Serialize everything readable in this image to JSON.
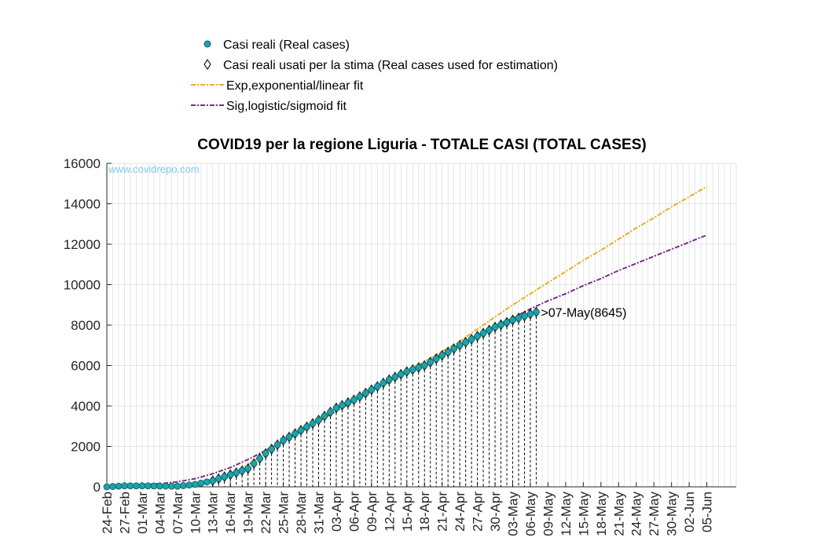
{
  "chart_data": {
    "type": "line",
    "title": "COVID19 per la regione Liguria - TOTALE CASI (TOTAL CASES)",
    "watermark": "www.covidrepo.com",
    "legend": {
      "placement": "top",
      "entries": [
        {
          "label": "Casi reali (Real cases)",
          "marker": "circle",
          "color": "#1ba3a8"
        },
        {
          "label": "Casi reali usati per la stima (Real cases used for estimation)",
          "marker": "diamond",
          "color": "#000000"
        },
        {
          "label": "Exp,exponential/linear fit",
          "style": "dashdot",
          "color": "#e6b020"
        },
        {
          "label": "Sig,logistic/sigmoid fit",
          "style": "dashdot",
          "color": "#7a2a8a"
        }
      ]
    },
    "x_axis": {
      "type": "date",
      "start": "2020-02-24",
      "end": "2020-06-10",
      "tick_labels": [
        "24-Feb",
        "27-Feb",
        "01-Mar",
        "04-Mar",
        "07-Mar",
        "10-Mar",
        "13-Mar",
        "16-Mar",
        "19-Mar",
        "22-Mar",
        "25-Mar",
        "28-Mar",
        "31-Mar",
        "03-Apr",
        "06-Apr",
        "09-Apr",
        "12-Apr",
        "15-Apr",
        "18-Apr",
        "21-Apr",
        "24-Apr",
        "27-Apr",
        "30-Apr",
        "03-May",
        "06-May",
        "09-May",
        "12-May",
        "15-May",
        "18-May",
        "21-May",
        "24-May",
        "27-May",
        "30-May",
        "02-Jun",
        "05-Jun"
      ]
    },
    "y_axis": {
      "ylim": [
        0,
        16000
      ],
      "tick_labels": [
        "0",
        "2000",
        "4000",
        "6000",
        "8000",
        "10000",
        "12000",
        "14000",
        "16000"
      ]
    },
    "grid": true,
    "series": [
      {
        "name": "Casi reali (Real cases)",
        "points": [
          [
            "2020-02-24",
            0
          ],
          [
            "2020-02-27",
            50
          ],
          [
            "2020-03-01",
            50
          ],
          [
            "2020-03-04",
            40
          ],
          [
            "2020-03-07",
            30
          ],
          [
            "2020-03-10",
            120
          ],
          [
            "2020-03-13",
            300
          ],
          [
            "2020-03-16",
            600
          ],
          [
            "2020-03-19",
            900
          ],
          [
            "2020-03-22",
            1650
          ],
          [
            "2020-03-25",
            2300
          ],
          [
            "2020-03-28",
            2800
          ],
          [
            "2020-03-31",
            3300
          ],
          [
            "2020-04-03",
            3900
          ],
          [
            "2020-04-06",
            4300
          ],
          [
            "2020-04-09",
            4800
          ],
          [
            "2020-04-12",
            5300
          ],
          [
            "2020-04-15",
            5700
          ],
          [
            "2020-04-18",
            6000
          ],
          [
            "2020-04-21",
            6500
          ],
          [
            "2020-04-24",
            7000
          ],
          [
            "2020-04-27",
            7450
          ],
          [
            "2020-04-30",
            7900
          ],
          [
            "2020-05-03",
            8250
          ],
          [
            "2020-05-07",
            8645
          ]
        ]
      },
      {
        "name": "Exp,exponential/linear fit",
        "points": [
          [
            "2020-03-10",
            0
          ],
          [
            "2020-03-13",
            300
          ],
          [
            "2020-03-16",
            650
          ],
          [
            "2020-03-19",
            1100
          ],
          [
            "2020-03-22",
            1700
          ],
          [
            "2020-03-25",
            2300
          ],
          [
            "2020-03-28",
            2850
          ],
          [
            "2020-03-31",
            3400
          ],
          [
            "2020-04-03",
            3900
          ],
          [
            "2020-04-06",
            4400
          ],
          [
            "2020-04-09",
            4850
          ],
          [
            "2020-04-12",
            5300
          ],
          [
            "2020-04-15",
            5750
          ],
          [
            "2020-04-18",
            6200
          ],
          [
            "2020-04-21",
            6700
          ],
          [
            "2020-04-24",
            7200
          ],
          [
            "2020-04-27",
            7800
          ],
          [
            "2020-04-30",
            8400
          ],
          [
            "2020-05-03",
            9000
          ],
          [
            "2020-05-06",
            9550
          ],
          [
            "2020-05-09",
            10100
          ],
          [
            "2020-05-12",
            10650
          ],
          [
            "2020-05-15",
            11200
          ],
          [
            "2020-05-18",
            11700
          ],
          [
            "2020-05-21",
            12250
          ],
          [
            "2020-05-24",
            12800
          ],
          [
            "2020-05-27",
            13300
          ],
          [
            "2020-05-30",
            13850
          ],
          [
            "2020-06-02",
            14350
          ],
          [
            "2020-06-05",
            14850
          ]
        ]
      },
      {
        "name": "Sig,logistic/sigmoid fit",
        "points": [
          [
            "2020-02-24",
            50
          ],
          [
            "2020-02-27",
            70
          ],
          [
            "2020-03-01",
            100
          ],
          [
            "2020-03-04",
            150
          ],
          [
            "2020-03-07",
            250
          ],
          [
            "2020-03-10",
            400
          ],
          [
            "2020-03-13",
            650
          ],
          [
            "2020-03-16",
            950
          ],
          [
            "2020-03-19",
            1350
          ],
          [
            "2020-03-22",
            1800
          ],
          [
            "2020-03-25",
            2250
          ],
          [
            "2020-03-28",
            2750
          ],
          [
            "2020-03-31",
            3250
          ],
          [
            "2020-04-03",
            3750
          ],
          [
            "2020-04-06",
            4250
          ],
          [
            "2020-04-09",
            4750
          ],
          [
            "2020-04-12",
            5200
          ],
          [
            "2020-04-15",
            5650
          ],
          [
            "2020-04-18",
            6100
          ],
          [
            "2020-04-21",
            6550
          ],
          [
            "2020-04-24",
            7000
          ],
          [
            "2020-04-27",
            7500
          ],
          [
            "2020-04-30",
            7950
          ],
          [
            "2020-05-03",
            8350
          ],
          [
            "2020-05-06",
            8800
          ],
          [
            "2020-05-09",
            9200
          ],
          [
            "2020-05-12",
            9550
          ],
          [
            "2020-05-15",
            9950
          ],
          [
            "2020-05-18",
            10300
          ],
          [
            "2020-05-21",
            10700
          ],
          [
            "2020-05-24",
            11050
          ],
          [
            "2020-05-27",
            11400
          ],
          [
            "2020-05-30",
            11750
          ],
          [
            "2020-06-02",
            12100
          ],
          [
            "2020-06-05",
            12450
          ]
        ]
      }
    ],
    "annotations": [
      {
        "x": "2020-05-07",
        "y": 8645,
        "text": ">07-May(8645)"
      }
    ]
  }
}
